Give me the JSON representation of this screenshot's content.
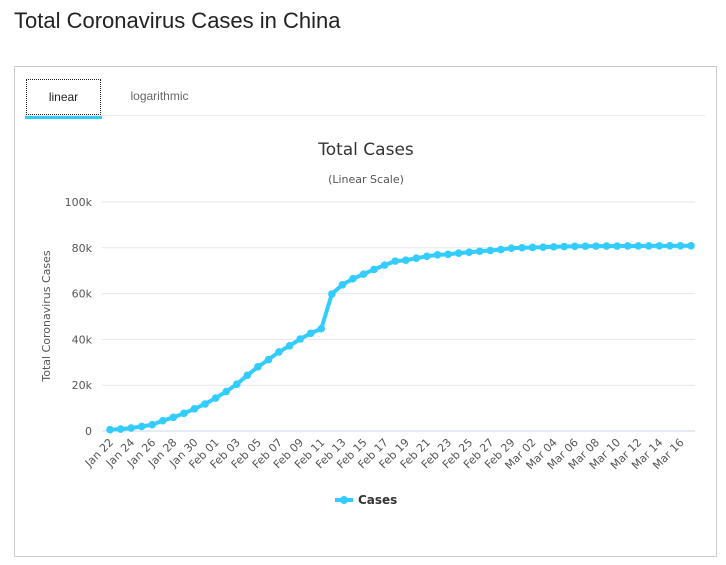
{
  "page": {
    "title": "Total Coronavirus Cases in China"
  },
  "tabs": [
    {
      "label": "linear",
      "active": true
    },
    {
      "label": "logarithmic",
      "active": false
    }
  ],
  "chart_data": {
    "type": "line",
    "title": "Total Cases",
    "subtitle": "(Linear Scale)",
    "xlabel": "",
    "ylabel": "Total Coronavirus Cases",
    "ylim": [
      0,
      100000
    ],
    "yticks": [
      0,
      20000,
      40000,
      60000,
      80000,
      100000
    ],
    "ytick_labels": [
      "0",
      "20k",
      "40k",
      "60k",
      "80k",
      "100k"
    ],
    "grid": true,
    "legend": "bottom-center",
    "color": "#33ccff",
    "x": [
      "Jan 22",
      "Jan 23",
      "Jan 24",
      "Jan 25",
      "Jan 26",
      "Jan 27",
      "Jan 28",
      "Jan 29",
      "Jan 30",
      "Jan 31",
      "Feb 01",
      "Feb 02",
      "Feb 03",
      "Feb 04",
      "Feb 05",
      "Feb 06",
      "Feb 07",
      "Feb 08",
      "Feb 09",
      "Feb 10",
      "Feb 11",
      "Feb 12",
      "Feb 13",
      "Feb 14",
      "Feb 15",
      "Feb 16",
      "Feb 17",
      "Feb 18",
      "Feb 19",
      "Feb 20",
      "Feb 21",
      "Feb 22",
      "Feb 23",
      "Feb 24",
      "Feb 25",
      "Feb 26",
      "Feb 27",
      "Feb 28",
      "Feb 29",
      "Mar 01",
      "Mar 02",
      "Mar 03",
      "Mar 04",
      "Mar 05",
      "Mar 06",
      "Mar 07",
      "Mar 08",
      "Mar 09",
      "Mar 10",
      "Mar 11",
      "Mar 12",
      "Mar 13",
      "Mar 14",
      "Mar 15",
      "Mar 16",
      "Mar 17"
    ],
    "series": [
      {
        "name": "Cases",
        "values": [
          571,
          830,
          1287,
          1975,
          2744,
          4515,
          5974,
          7711,
          9692,
          11791,
          14380,
          17205,
          20438,
          24324,
          28018,
          31161,
          34546,
          37198,
          40171,
          42638,
          44653,
          59804,
          63851,
          66492,
          68500,
          70548,
          72436,
          74185,
          74576,
          75465,
          76288,
          76936,
          77150,
          77658,
          78064,
          78497,
          78824,
          79251,
          79824,
          80026,
          80151,
          80270,
          80409,
          80552,
          80651,
          80695,
          80735,
          80754,
          80778,
          80793,
          80813,
          80824,
          80844,
          80860,
          80881,
          80894
        ]
      }
    ]
  }
}
